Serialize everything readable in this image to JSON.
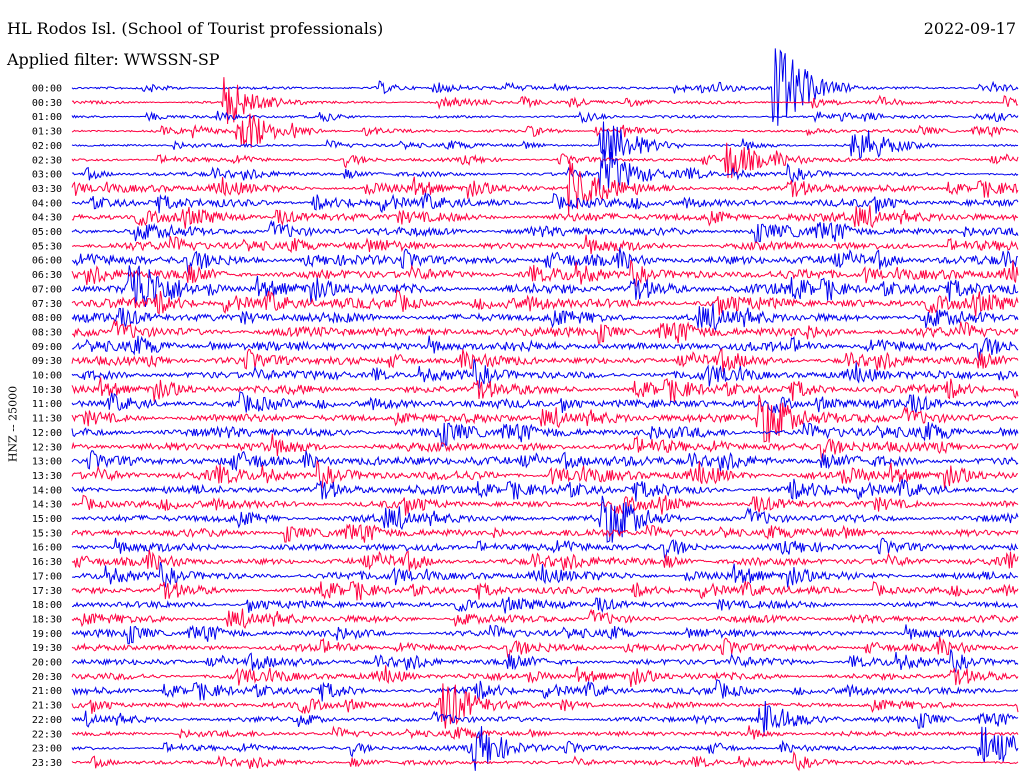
{
  "header": {
    "title": "HL Rodos Isl. (School of Tourist professionals)",
    "filter": "Applied filter: WWSSN-SP",
    "date": "2022-09-17"
  },
  "chart_data": {
    "type": "line",
    "title": "HL Rodos Isl. (School of Tourist professionals)",
    "ylabel": "HNZ -- 25000",
    "colors": [
      "#0000ee",
      "#ff0040"
    ],
    "hours": [
      "00:00",
      "00:30",
      "01:00",
      "01:30",
      "02:00",
      "02:30",
      "03:00",
      "03:30",
      "04:00",
      "04:30",
      "05:00",
      "05:30",
      "06:00",
      "06:30",
      "07:00",
      "07:30",
      "08:00",
      "08:30",
      "09:00",
      "09:30",
      "10:00",
      "10:30",
      "11:00",
      "11:30",
      "12:00",
      "12:30",
      "13:00",
      "13:30",
      "14:00",
      "14:30",
      "15:00",
      "15:30",
      "16:00",
      "16:30",
      "17:00",
      "17:30",
      "18:00",
      "18:30",
      "19:00",
      "19:30",
      "20:00",
      "20:30",
      "21:00",
      "21:30",
      "22:00",
      "22:30",
      "23:00",
      "23:30"
    ],
    "noise_level": [
      0.3,
      0.35,
      0.3,
      0.35,
      0.35,
      0.4,
      0.5,
      0.8,
      0.9,
      1.0,
      1.0,
      1.0,
      1.1,
      1.1,
      1.2,
      1.2,
      1.1,
      1.1,
      1.1,
      1.0,
      1.0,
      1.0,
      1.0,
      1.0,
      1.1,
      1.1,
      1.1,
      1.1,
      1.0,
      0.9,
      0.9,
      0.9,
      0.9,
      0.9,
      0.9,
      0.8,
      0.8,
      0.8,
      0.8,
      0.8,
      0.8,
      0.8,
      0.8,
      0.7,
      0.6,
      0.6,
      0.5,
      0.5
    ],
    "events": [
      {
        "hour": "00:00",
        "minute": 22.5,
        "amp": 3.2
      },
      {
        "hour": "00:30",
        "minute": 5.0,
        "amp": 1.5
      },
      {
        "hour": "01:30",
        "minute": 5.5,
        "amp": 1.2
      },
      {
        "hour": "02:00",
        "minute": 17.0,
        "amp": 2.0
      },
      {
        "hour": "02:00",
        "minute": 25.0,
        "amp": 1.5
      },
      {
        "hour": "02:30",
        "minute": 21.0,
        "amp": 1.5
      },
      {
        "hour": "03:00",
        "minute": 17.0,
        "amp": 1.8
      },
      {
        "hour": "03:30",
        "minute": 16.0,
        "amp": 2.0
      },
      {
        "hour": "07:00",
        "minute": 2.0,
        "amp": 2.2
      },
      {
        "hour": "11:30",
        "minute": 22.0,
        "amp": 1.8
      },
      {
        "hour": "15:00",
        "minute": 17.0,
        "amp": 1.6
      },
      {
        "hour": "21:30",
        "minute": 12.0,
        "amp": 1.5
      },
      {
        "hour": "22:00",
        "minute": 22.0,
        "amp": 1.5
      },
      {
        "hour": "23:00",
        "minute": 13.0,
        "amp": 1.5
      },
      {
        "hour": "23:00",
        "minute": 29.0,
        "amp": 1.6
      }
    ]
  }
}
